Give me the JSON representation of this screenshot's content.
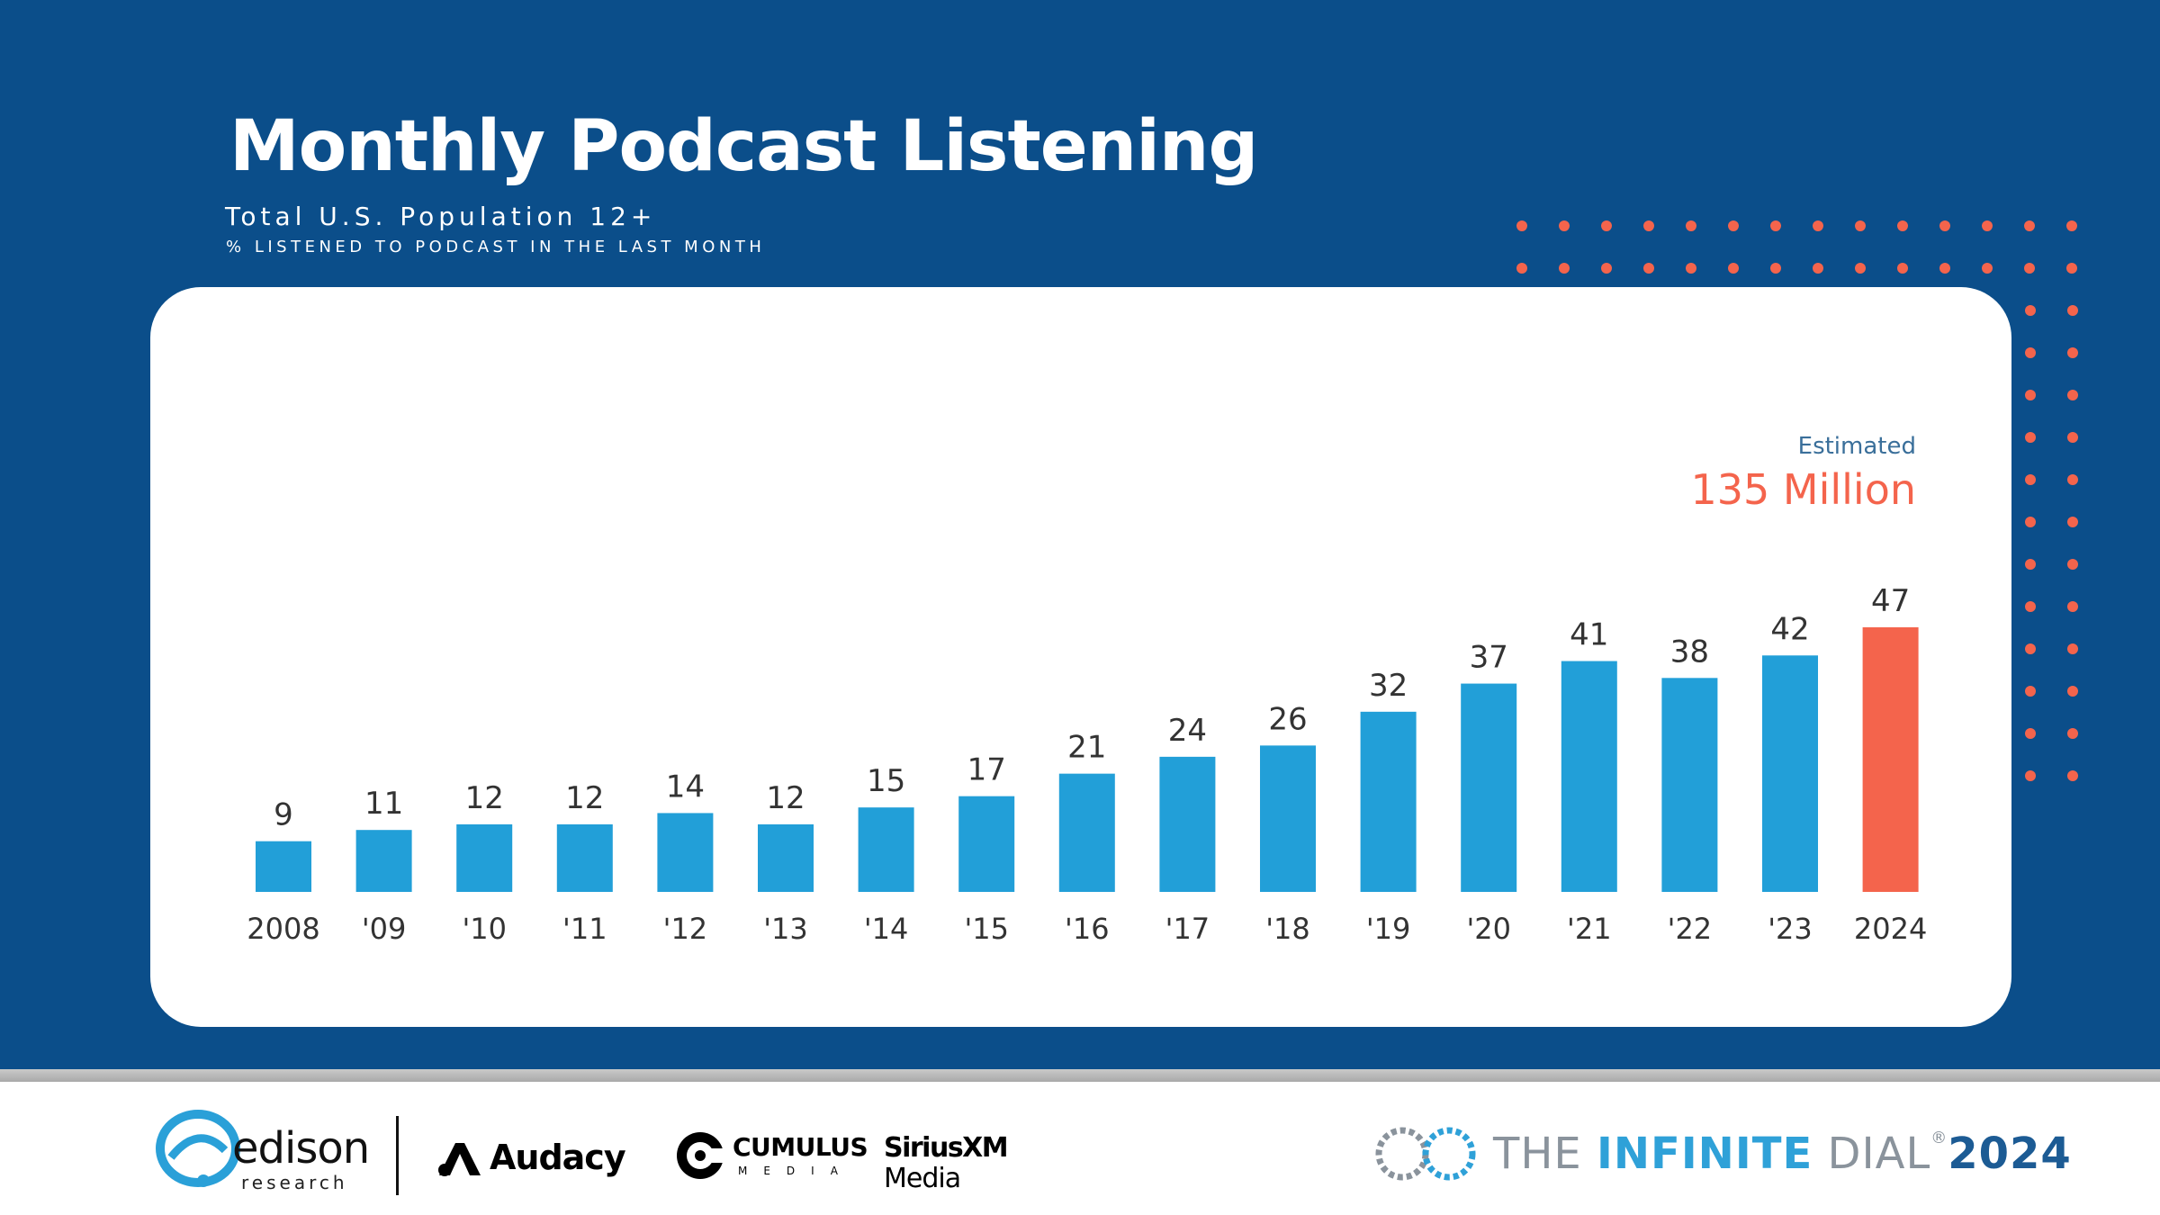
{
  "header": {
    "title": "Monthly Podcast Listening",
    "subtitle": "Total U.S. Population 12+",
    "subtitle2": "% LISTENED TO PODCAST IN THE LAST MONTH"
  },
  "annotation": {
    "label": "Estimated",
    "value": "135 Million"
  },
  "colors": {
    "background": "#0b4e8a",
    "bar": "#229fd8",
    "highlight": "#f4644c",
    "dots": "#f4644c"
  },
  "chart_data": {
    "type": "bar",
    "categories": [
      "2008",
      "'09",
      "'10",
      "'11",
      "'12",
      "'13",
      "'14",
      "'15",
      "'16",
      "'17",
      "'18",
      "'19",
      "'20",
      "'21",
      "'22",
      "'23",
      "2024"
    ],
    "values": [
      9,
      11,
      12,
      12,
      14,
      12,
      15,
      17,
      21,
      24,
      26,
      32,
      37,
      41,
      38,
      42,
      47
    ],
    "highlight_index": 16,
    "title": "Monthly Podcast Listening",
    "xlabel": "",
    "ylabel": "% listened to podcast in the last month",
    "ylim": [
      0,
      47
    ],
    "grid": false,
    "legend": "none"
  },
  "footer": {
    "edison": {
      "name": "edison",
      "sub": "research"
    },
    "audacy": "Audacy",
    "cumulus": {
      "name": "CUMULUS",
      "sub": "MEDIA"
    },
    "sirius": {
      "name": "SiriusXM",
      "sub": "Media"
    },
    "infinite_dial": {
      "the": "THE ",
      "infinite": "INFINITE",
      "dial": " DIAL",
      "reg": "®",
      "year": "2024"
    }
  }
}
